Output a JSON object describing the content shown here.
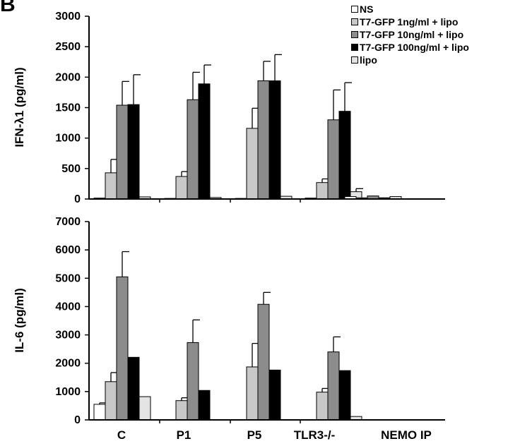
{
  "panel_label": "B",
  "colors": {
    "NS": "#ffffff",
    "T7-GFP 1ng/ml + lipo": "#c8c8c8",
    "T7-GFP 10ng/ml + lipo": "#8c8c8c",
    "T7-GFP 100ng/ml + lipo": "#000000",
    "lipo": "#e4e4e4"
  },
  "legend": [
    "NS",
    "T7-GFP 1ng/ml + lipo",
    "T7-GFP 10ng/ml + lipo",
    "T7-GFP 100ng/ml + lipo",
    "lipo"
  ],
  "chart_data": [
    {
      "type": "bar",
      "ylabel": "IFN-λ1 (pg/ml)",
      "ylim": [
        0,
        3000
      ],
      "yticks": [
        "0",
        "500",
        "1000",
        "1500",
        "2000",
        "2500",
        "3000"
      ],
      "categories": [
        "C",
        "P1",
        "P5",
        "TLR3-/-",
        "NEMO IP"
      ],
      "show_category_labels": false,
      "series": [
        {
          "name": "NS",
          "values": [
            15,
            10,
            10,
            15,
            40
          ],
          "errors": [
            0,
            0,
            0,
            0,
            0
          ]
        },
        {
          "name": "T7-GFP 1ng/ml + lipo",
          "values": [
            430,
            370,
            1160,
            270,
            20
          ],
          "errors": [
            220,
            80,
            330,
            60,
            0
          ]
        },
        {
          "name": "T7-GFP 10ng/ml + lipo",
          "values": [
            1540,
            1630,
            1940,
            1300,
            50
          ],
          "errors": [
            390,
            450,
            320,
            490,
            0
          ]
        },
        {
          "name": "T7-GFP 100ng/ml + lipo",
          "values": [
            1550,
            1890,
            1940,
            1440,
            20
          ],
          "errors": [
            490,
            310,
            430,
            470,
            0
          ]
        },
        {
          "name": "lipo",
          "values": [
            35,
            25,
            45,
            120,
            40
          ],
          "errors": [
            0,
            0,
            0,
            50,
            0
          ]
        }
      ]
    },
    {
      "type": "bar",
      "ylabel": "IL-6 (pg/ml)",
      "ylim": [
        0,
        7000
      ],
      "yticks": [
        "0",
        "1000",
        "2000",
        "3000",
        "4000",
        "5000",
        "6000",
        "7000"
      ],
      "categories": [
        "C",
        "P1",
        "P5",
        "TLR3-/-",
        "NEMO IP"
      ],
      "show_category_labels": true,
      "series": [
        {
          "name": "NS",
          "values": [
            550,
            0,
            0,
            0,
            0
          ],
          "errors": [
            50,
            0,
            0,
            0,
            0
          ]
        },
        {
          "name": "T7-GFP 1ng/ml + lipo",
          "values": [
            1350,
            680,
            1870,
            980,
            0
          ],
          "errors": [
            320,
            100,
            830,
            130,
            0
          ]
        },
        {
          "name": "T7-GFP 10ng/ml + lipo",
          "values": [
            5050,
            2730,
            4080,
            2400,
            0
          ],
          "errors": [
            890,
            800,
            420,
            530,
            0
          ]
        },
        {
          "name": "T7-GFP 100ng/ml + lipo",
          "values": [
            2210,
            1040,
            1760,
            1740,
            0
          ],
          "errors": [
            0,
            0,
            0,
            0,
            0
          ]
        },
        {
          "name": "lipo",
          "values": [
            820,
            0,
            0,
            120,
            0
          ],
          "errors": [
            0,
            0,
            0,
            0,
            0
          ]
        }
      ]
    }
  ]
}
